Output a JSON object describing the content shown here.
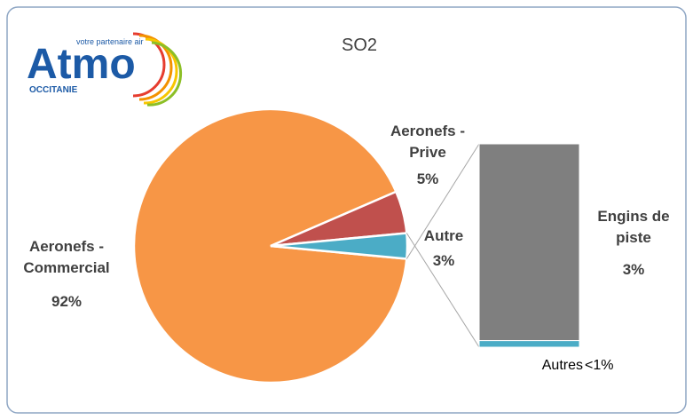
{
  "logo": {
    "name": "Atmo",
    "tagline": "votre partenaire air",
    "region": "OCCITANIE"
  },
  "chart_data": {
    "type": "pie",
    "title": "SO2",
    "categories": [
      "Aeronefs - Commercial",
      "Aeronefs - Prive",
      "Autre"
    ],
    "values": [
      92,
      5,
      3
    ],
    "value_labels": [
      "92%",
      "5%",
      "3%"
    ],
    "colors": [
      "#f79646",
      "#c0504d",
      "#4bacc6"
    ],
    "bar": {
      "categories": [
        "Engins de piste",
        "Autres"
      ],
      "values": [
        3,
        0.1
      ],
      "value_labels": [
        "3%",
        "<1%"
      ],
      "colors": [
        "#7f7f7f",
        "#4bacc6"
      ]
    }
  }
}
